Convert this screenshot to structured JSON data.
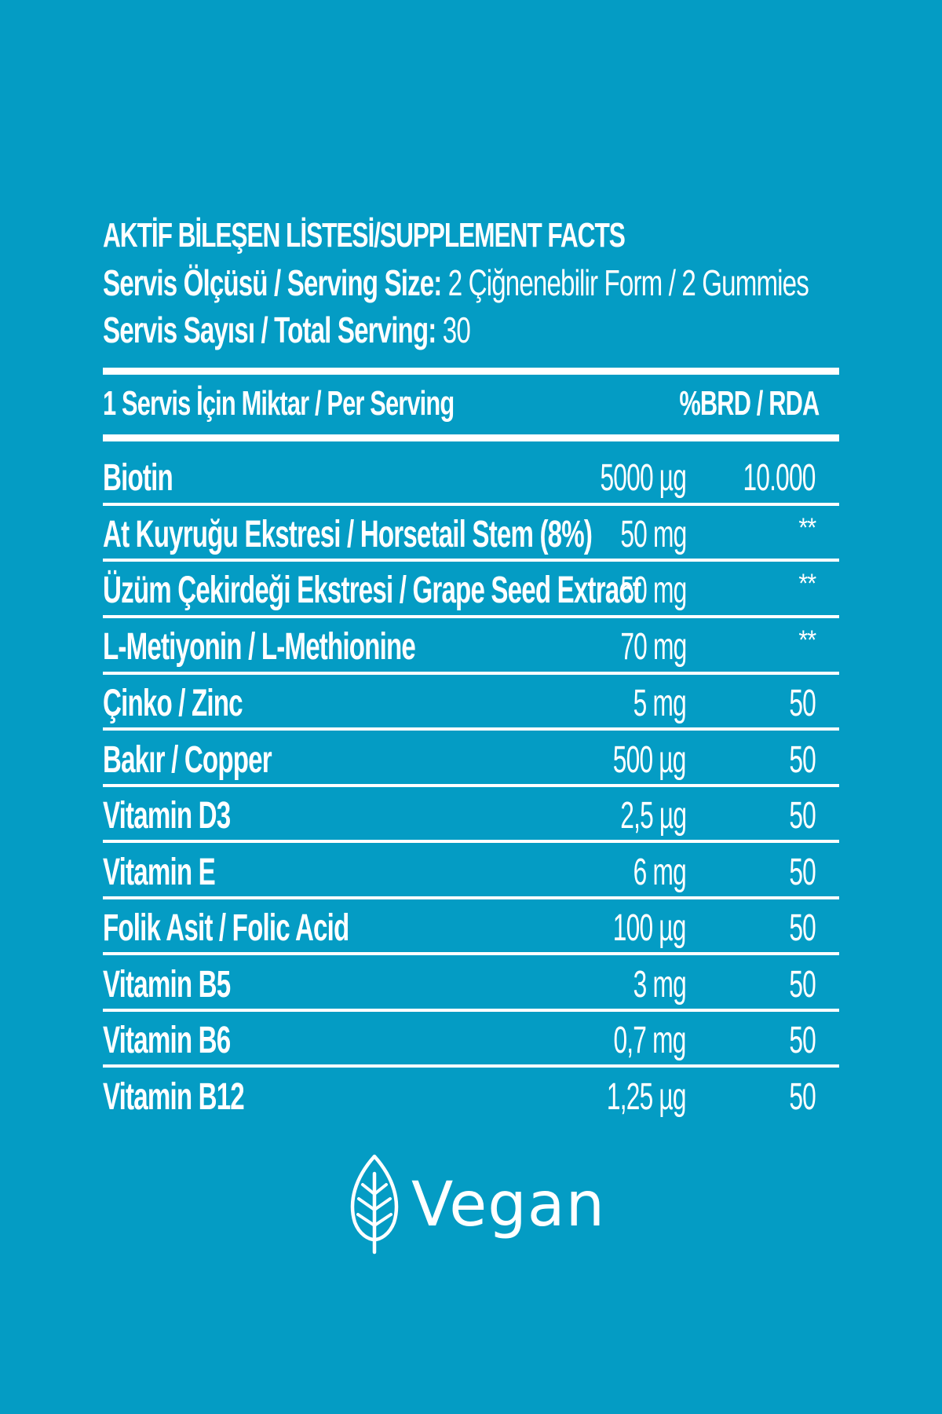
{
  "header": {
    "title": "AKTİF BİLEŞEN LİSTESİ/SUPPLEMENT FACTS",
    "serving_size_label": "Servis Ölçüsü / Serving Size:",
    "serving_size_value": " 2 Çiğnenebilir Form / 2 Gummies",
    "total_serving_label": "Servis Sayısı / Total Serving:",
    "total_serving_value": " 30"
  },
  "table": {
    "header_left": "1 Servis İçin Miktar / Per Serving",
    "header_right": "%BRD / RDA",
    "rows": [
      {
        "name": "Biotin",
        "amount": "5000 µg",
        "rda": "10.000"
      },
      {
        "name": "At Kuyruğu Ekstresi / Horsetail Stem (8%)",
        "amount": "50 mg",
        "rda": "**"
      },
      {
        "name": "Üzüm Çekirdeği Ekstresi / Grape Seed Extract",
        "amount": "50 mg",
        "rda": "**"
      },
      {
        "name": "L-Metiyonin / L-Methionine",
        "amount": "70 mg",
        "rda": "**"
      },
      {
        "name": "Çinko / Zinc",
        "amount": "5 mg",
        "rda": "50"
      },
      {
        "name": "Bakır / Copper",
        "amount": "500 µg",
        "rda": "50"
      },
      {
        "name": "Vitamin D3",
        "amount": "2,5 µg",
        "rda": "50"
      },
      {
        "name": "Vitamin E",
        "amount": "6 mg",
        "rda": "50"
      },
      {
        "name": "Folik Asit / Folic Acid",
        "amount": "100 µg",
        "rda": "50"
      },
      {
        "name": "Vitamin B5",
        "amount": "3 mg",
        "rda": "50"
      },
      {
        "name": "Vitamin B6",
        "amount": "0,7 mg",
        "rda": "50"
      },
      {
        "name": "Vitamin B12",
        "amount": "1,25 µg",
        "rda": "50"
      }
    ]
  },
  "badge": {
    "label": "Vegan",
    "icon": "leaf-icon"
  },
  "colors": {
    "background": "#049cc4",
    "foreground": "#ffffff"
  }
}
